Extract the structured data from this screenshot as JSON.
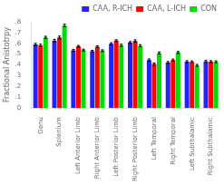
{
  "chart_data": {
    "type": "bar",
    "categories": [
      "Genu",
      "Splenium",
      "Left Anterior Limb",
      "Right Anterior Limb",
      "Left Posterior Limb",
      "Right Posterior Limb",
      "Left Temporal",
      "Right Temporal",
      "Left Subthalamic",
      "Right Subthalamic"
    ],
    "series": [
      {
        "name": "CAA, R-ICH",
        "color": "#2222ff",
        "values": [
          0.59,
          0.625,
          0.535,
          0.527,
          0.595,
          0.608,
          0.445,
          0.422,
          0.43,
          0.432
        ],
        "errors": [
          0.01,
          0.012,
          0.008,
          0.008,
          0.01,
          0.008,
          0.01,
          0.009,
          0.009,
          0.009
        ]
      },
      {
        "name": "CAA, L-ICH",
        "color": "#ff0000",
        "values": [
          0.582,
          0.655,
          0.572,
          0.568,
          0.625,
          0.622,
          0.408,
          0.445,
          0.428,
          0.43
        ],
        "errors": [
          0.01,
          0.012,
          0.008,
          0.008,
          0.008,
          0.01,
          0.01,
          0.009,
          0.009,
          0.009
        ]
      },
      {
        "name": "CON",
        "color": "#00dd00",
        "values": [
          0.655,
          0.765,
          0.538,
          0.532,
          0.582,
          0.578,
          0.51,
          0.515,
          0.395,
          0.428
        ],
        "errors": [
          0.01,
          0.012,
          0.008,
          0.008,
          0.01,
          0.01,
          0.01,
          0.009,
          0.009,
          0.009
        ]
      }
    ],
    "ylabel": "Fractional Anistotrpy",
    "ylim": [
      0.0,
      0.8
    ],
    "yticks": [
      0,
      {
        "value": 0.1,
        "label": ".1"
      },
      {
        "value": 0.2,
        "label": ".2"
      },
      {
        "value": 0.3,
        "label": ".3"
      },
      {
        "value": 0.4,
        "label": ".4"
      },
      {
        "value": 0.5,
        "label": ".5"
      },
      {
        "value": 0.6,
        "label": ".6"
      },
      {
        "value": 0.7,
        "label": ".7"
      },
      {
        "value": 0.8,
        "label": ".8"
      }
    ],
    "grid": false,
    "legend": "upper right"
  }
}
